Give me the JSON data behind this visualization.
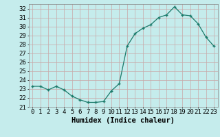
{
  "x": [
    0,
    1,
    2,
    3,
    4,
    5,
    6,
    7,
    8,
    9,
    10,
    11,
    12,
    13,
    14,
    15,
    16,
    17,
    18,
    19,
    20,
    21,
    22,
    23
  ],
  "y": [
    23.3,
    23.3,
    22.9,
    23.3,
    22.9,
    22.2,
    21.8,
    21.5,
    21.5,
    21.6,
    22.8,
    23.6,
    27.8,
    29.2,
    29.8,
    30.2,
    31.0,
    31.3,
    32.2,
    31.3,
    31.2,
    30.3,
    28.8,
    27.8
  ],
  "line_color": "#1a7a6a",
  "marker_color": "#1a7a6a",
  "bg_color": "#c5ecec",
  "grid_color": "#c8a8a8",
  "xlabel": "Humidex (Indice chaleur)",
  "ylabel_ticks": [
    21,
    22,
    23,
    24,
    25,
    26,
    27,
    28,
    29,
    30,
    31,
    32
  ],
  "ylim": [
    21,
    32.5
  ],
  "xlim": [
    -0.5,
    23.5
  ],
  "xlabel_fontsize": 7.5,
  "tick_fontsize": 6.5,
  "title": ""
}
